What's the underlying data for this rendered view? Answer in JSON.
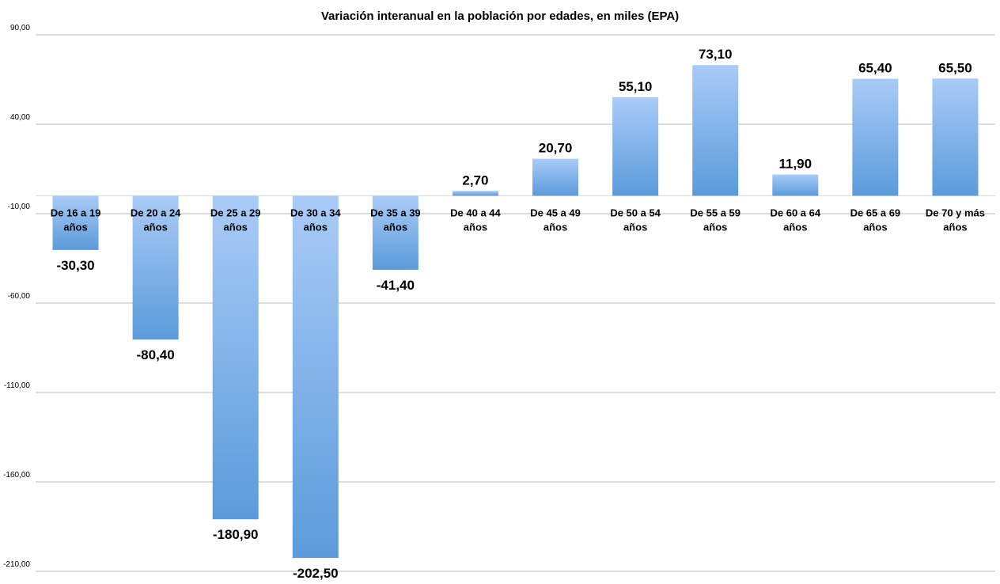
{
  "chart_data": {
    "type": "bar",
    "title": "Variación interanual en la población por edades, en miles (EPA)",
    "xlabel": "",
    "ylabel": "",
    "ylim": [
      -210,
      90
    ],
    "yticks": [
      90,
      40,
      -10,
      -60,
      -110,
      -160,
      -210
    ],
    "ytick_labels": [
      "90,00",
      "40,00",
      "-10,00",
      "-60,00",
      "-110,00",
      "-160,00",
      "-210,00"
    ],
    "grid": true,
    "legend": "none",
    "categories": [
      [
        "De 16 a 19",
        "años"
      ],
      [
        "De 20 a 24",
        "años"
      ],
      [
        "De 25 a 29",
        "años"
      ],
      [
        "De 30 a 34",
        "años"
      ],
      [
        "De 35 a 39",
        "años"
      ],
      [
        "De 40 a 44",
        "años"
      ],
      [
        "De 45 a 49",
        "años"
      ],
      [
        "De 50 a 54",
        "años"
      ],
      [
        "De 55 a 59",
        "años"
      ],
      [
        "De 60 a 64",
        "años"
      ],
      [
        "De 65 a 69",
        "años"
      ],
      [
        "De 70 y más",
        "años"
      ]
    ],
    "values": [
      -30.3,
      -80.4,
      -180.9,
      -202.5,
      -41.4,
      2.7,
      20.7,
      55.1,
      73.1,
      11.9,
      65.4,
      65.5
    ],
    "value_labels": [
      "-30,30",
      "-80,40",
      "-180,90",
      "-202,50",
      "-41,40",
      "2,70",
      "20,70",
      "55,10",
      "73,10",
      "11,90",
      "65,40",
      "65,50"
    ],
    "colors": {
      "bar_light": "#a9cbf7",
      "bar_dark": "#5b9bdb"
    }
  }
}
